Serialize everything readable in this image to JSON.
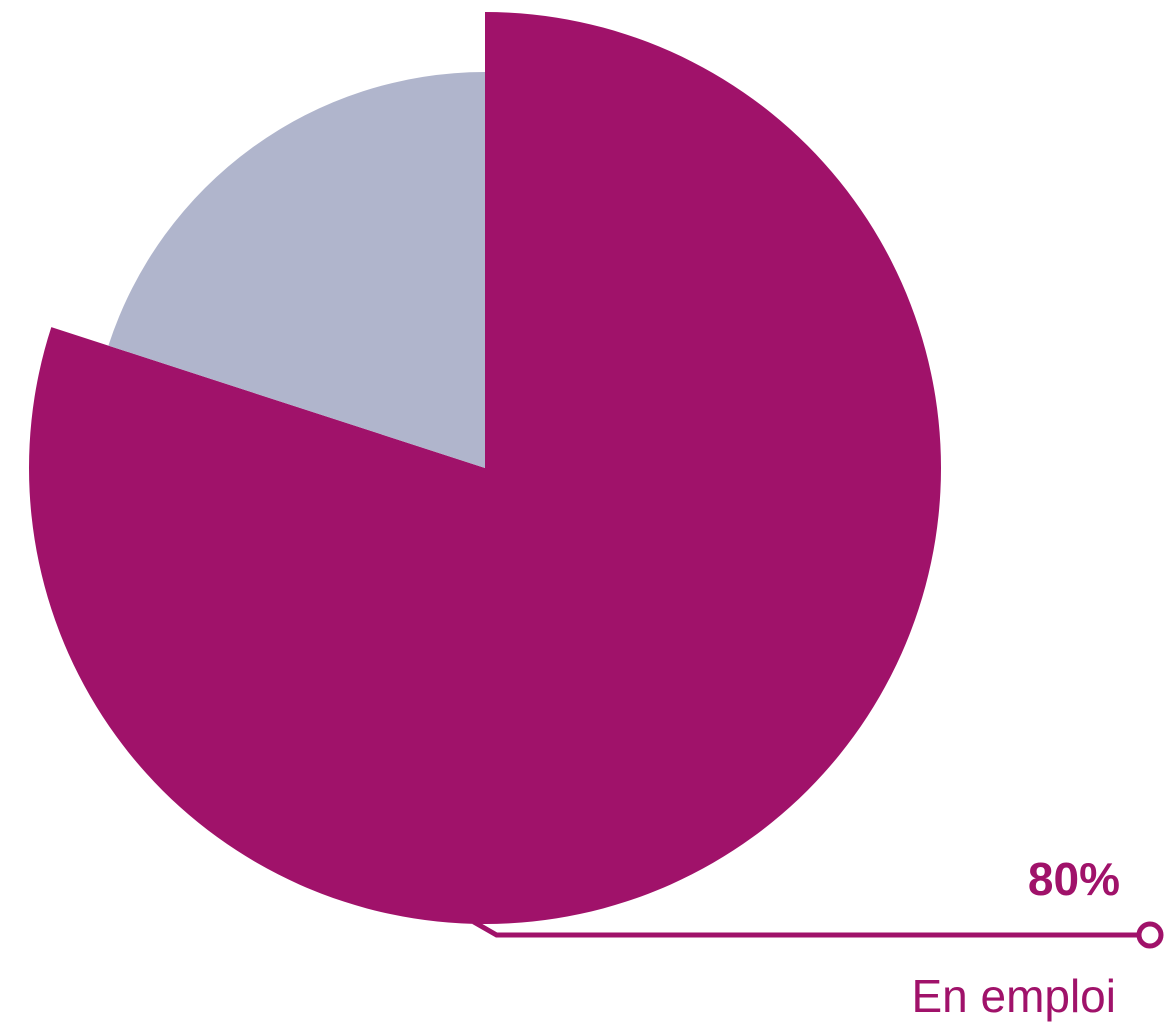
{
  "chart_data": {
    "type": "pie",
    "categories": [
      "En emploi",
      null
    ],
    "values": [
      80,
      20
    ],
    "value_labels": [
      "80%",
      null
    ],
    "colors": [
      "#a0126a",
      "#b0b5cc"
    ]
  }
}
